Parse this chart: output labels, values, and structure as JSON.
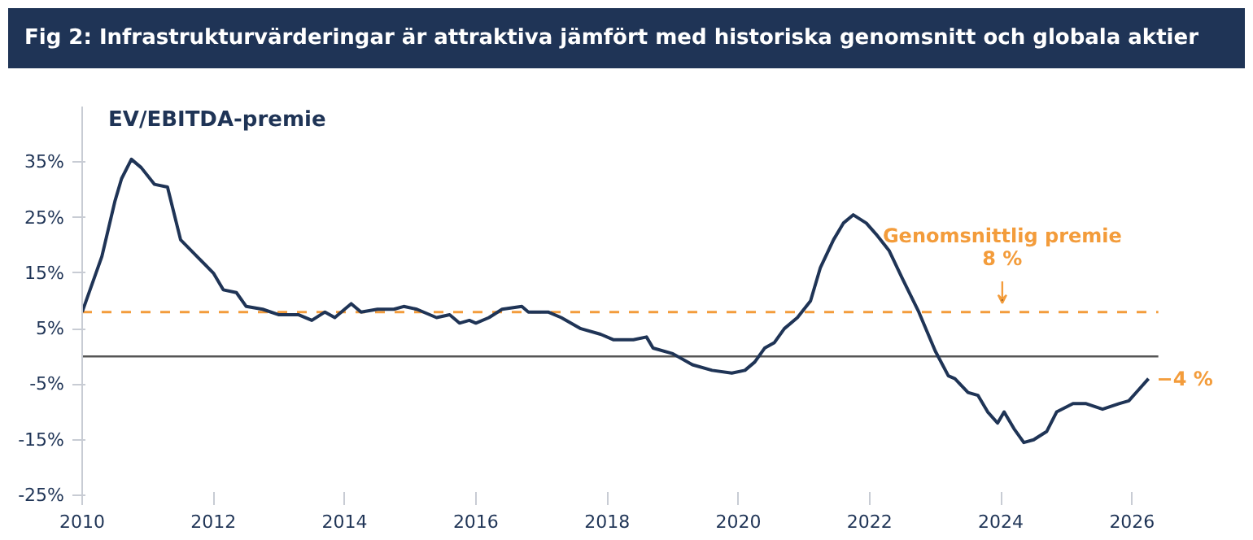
{
  "chart_data": {
    "type": "line",
    "title": "Fig 2: Infrastrukturvärderingar är attraktiva jämfört med historiska genomsnitt och globala aktier",
    "subtitle": "EV/EBITDA-premie",
    "x": [
      2010.0,
      2010.3,
      2010.5,
      2010.6,
      2010.75,
      2010.9,
      2011.1,
      2011.3,
      2011.5,
      2011.75,
      2012.0,
      2012.15,
      2012.35,
      2012.5,
      2012.75,
      2013.0,
      2013.3,
      2013.5,
      2013.7,
      2013.85,
      2014.0,
      2014.1,
      2014.25,
      2014.5,
      2014.75,
      2014.9,
      2015.1,
      2015.4,
      2015.6,
      2015.75,
      2015.9,
      2016.0,
      2016.2,
      2016.4,
      2016.7,
      2016.8,
      2017.1,
      2017.3,
      2017.6,
      2017.9,
      2018.1,
      2018.4,
      2018.6,
      2018.7,
      2019.0,
      2019.3,
      2019.6,
      2019.9,
      2020.1,
      2020.25,
      2020.4,
      2020.55,
      2020.7,
      2020.9,
      2021.1,
      2021.25,
      2021.45,
      2021.6,
      2021.75,
      2021.95,
      2022.1,
      2022.3,
      2022.5,
      2022.75,
      2023.0,
      2023.2,
      2023.3,
      2023.5,
      2023.65,
      2023.8,
      2023.95,
      2024.05,
      2024.2,
      2024.35,
      2024.5,
      2024.7,
      2024.85,
      2025.1,
      2025.3,
      2025.55,
      2025.8,
      2025.95,
      2026.1,
      2026.25
    ],
    "series": [
      {
        "color": "#1f3456",
        "values": [
          8,
          18,
          28,
          32,
          35.5,
          34,
          31,
          30.5,
          21,
          18,
          15,
          12,
          11.5,
          9,
          8.5,
          7.5,
          7.5,
          6.5,
          8,
          7,
          8.5,
          9.5,
          8,
          8.5,
          8.5,
          9,
          8.5,
          7,
          7.5,
          6,
          6.5,
          6,
          7,
          8.5,
          9,
          8,
          8,
          7,
          5,
          4,
          3,
          3,
          3.5,
          1.5,
          0.5,
          -1.5,
          -2.5,
          -3,
          -2.5,
          -1,
          1.5,
          2.5,
          5,
          7,
          10,
          16,
          21,
          24,
          25.5,
          24,
          22,
          19,
          14,
          8,
          1,
          -3.5,
          -4,
          -6.5,
          -7,
          -10,
          -12,
          -10,
          -13,
          -15.5,
          -15,
          -13.5,
          -10,
          -8.5,
          -8.5,
          -9.5,
          -8.5,
          -8,
          -6,
          -4
        ]
      }
    ],
    "xlim": [
      2010,
      2026.4
    ],
    "xticks": [
      2010,
      2012,
      2014,
      2016,
      2018,
      2020,
      2022,
      2024,
      2026
    ],
    "ylim": [
      -25,
      45
    ],
    "yticks": [
      {
        "value": -25,
        "label": "-25%"
      },
      {
        "value": -15,
        "label": "-15%"
      },
      {
        "value": -5,
        "label": "-5%"
      },
      {
        "value": 5,
        "label": "5%"
      },
      {
        "value": 15,
        "label": "15%"
      },
      {
        "value": 25,
        "label": "25%"
      },
      {
        "value": 35,
        "label": "35%"
      }
    ],
    "ref_lines": [
      {
        "axis": "y",
        "value": 8,
        "label": "Genomsnittlig premie\n8 %",
        "color": "#f39c3b",
        "line_style": "dashed"
      },
      {
        "axis": "y",
        "value": 0,
        "color": "#555555",
        "line_style": "solid"
      }
    ],
    "annotations": [
      {
        "text": "−4 %",
        "x": 2026.25,
        "y": -4
      }
    ],
    "grid": false,
    "line_style": "solid",
    "marker": "none"
  }
}
